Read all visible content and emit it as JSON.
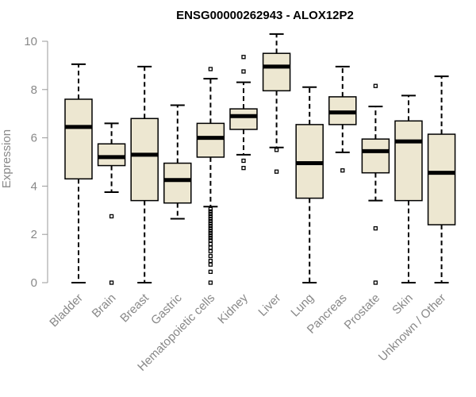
{
  "chart_data": {
    "type": "boxplot",
    "title": "ENSG00000262943 - ALOX12P2",
    "ylabel": "Expression",
    "xlabel": "",
    "ylim": [
      0,
      10.4
    ],
    "yticks": [
      0,
      2,
      4,
      6,
      8,
      10
    ],
    "box_color": "#ede7d1",
    "categories": [
      "Bladder",
      "Brain",
      "Breast",
      "Gastric",
      "Hematopoietic cells",
      "Kidney",
      "Liver",
      "Lung",
      "Pancreas",
      "Prostate",
      "Skin",
      "Unknown / Other"
    ],
    "boxes": [
      {
        "whisker_low": 0.0,
        "q1": 4.3,
        "median": 6.45,
        "q3": 7.6,
        "whisker_high": 9.05,
        "outliers": []
      },
      {
        "whisker_low": 3.75,
        "q1": 4.85,
        "median": 5.2,
        "q3": 5.75,
        "whisker_high": 6.6,
        "outliers": [
          2.75,
          0.0
        ]
      },
      {
        "whisker_low": 0.0,
        "q1": 3.4,
        "median": 5.3,
        "q3": 6.8,
        "whisker_high": 8.95,
        "outliers": []
      },
      {
        "whisker_low": 2.65,
        "q1": 3.3,
        "median": 4.25,
        "q3": 4.95,
        "whisker_high": 7.35,
        "outliers": []
      },
      {
        "whisker_low": 3.15,
        "q1": 5.2,
        "median": 6.0,
        "q3": 6.6,
        "whisker_high": 8.45,
        "outliers": [
          8.85,
          3.05,
          2.95,
          2.85,
          2.75,
          2.65,
          2.55,
          2.45,
          2.35,
          2.25,
          2.15,
          2.05,
          1.95,
          1.85,
          1.75,
          1.6,
          1.45,
          1.3,
          1.1,
          0.9,
          0.75,
          0.45,
          0.0
        ]
      },
      {
        "whisker_low": 5.3,
        "q1": 6.35,
        "median": 6.9,
        "q3": 7.2,
        "whisker_high": 8.3,
        "outliers": [
          9.35,
          8.75,
          5.05,
          4.75
        ]
      },
      {
        "whisker_low": 5.6,
        "q1": 7.95,
        "median": 8.95,
        "q3": 9.5,
        "whisker_high": 10.3,
        "outliers": [
          5.5,
          4.6
        ]
      },
      {
        "whisker_low": 0.0,
        "q1": 3.5,
        "median": 4.95,
        "q3": 6.55,
        "whisker_high": 8.1,
        "outliers": []
      },
      {
        "whisker_low": 5.4,
        "q1": 6.55,
        "median": 7.05,
        "q3": 7.7,
        "whisker_high": 8.95,
        "outliers": [
          4.65
        ]
      },
      {
        "whisker_low": 3.4,
        "q1": 4.55,
        "median": 5.45,
        "q3": 5.95,
        "whisker_high": 7.3,
        "outliers": [
          8.15,
          2.25,
          0.0
        ]
      },
      {
        "whisker_low": 0.0,
        "q1": 3.4,
        "median": 5.85,
        "q3": 6.7,
        "whisker_high": 7.75,
        "outliers": []
      },
      {
        "whisker_low": 0.0,
        "q1": 2.4,
        "median": 4.55,
        "q3": 6.15,
        "whisker_high": 8.55,
        "outliers": []
      }
    ]
  }
}
